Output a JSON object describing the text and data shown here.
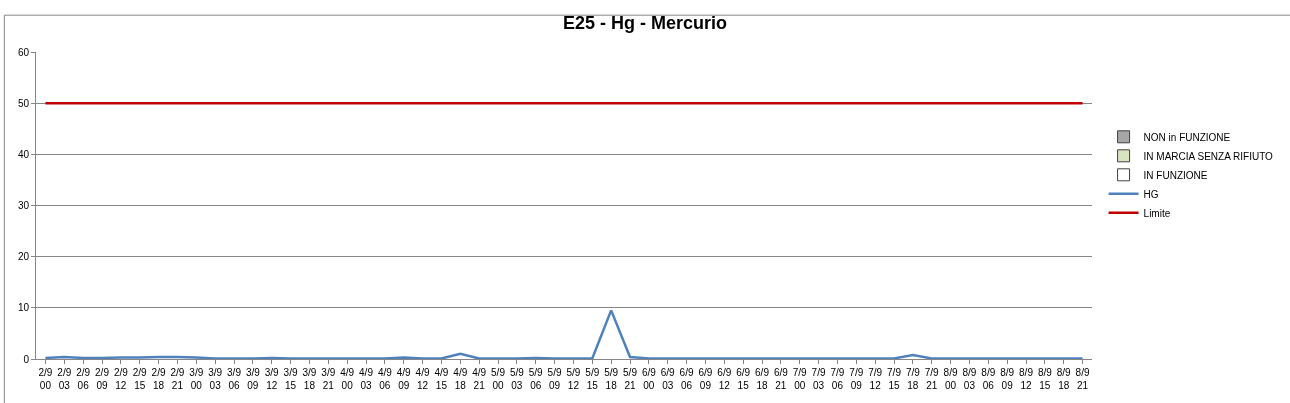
{
  "chart_data": {
    "type": "line",
    "title": "E25 - Hg - Mercurio",
    "categories": [
      "2/9 00",
      "2/9 03",
      "2/9 06",
      "2/9 09",
      "2/9 12",
      "2/9 15",
      "2/9 18",
      "2/9 21",
      "3/9 00",
      "3/9 03",
      "3/9 06",
      "3/9 09",
      "3/9 12",
      "3/9 15",
      "3/9 18",
      "3/9 21",
      "4/9 00",
      "4/9 03",
      "4/9 06",
      "4/9 09",
      "4/9 12",
      "4/9 15",
      "4/9 18",
      "4/9 21",
      "5/9 00",
      "5/9 03",
      "5/9 06",
      "5/9 09",
      "5/9 12",
      "5/9 15",
      "5/9 18",
      "5/9 21",
      "6/9 00",
      "6/9 03",
      "6/9 06",
      "6/9 09",
      "6/9 12",
      "6/9 15",
      "6/9 18",
      "6/9 21",
      "7/9 00",
      "7/9 03",
      "7/9 06",
      "7/9 09",
      "7/9 12",
      "7/9 15",
      "7/9 18",
      "7/9 21",
      "8/9 00",
      "8/9 03",
      "8/9 06",
      "8/9 09",
      "8/9 12",
      "8/9 15",
      "8/9 18",
      "8/9 21"
    ],
    "series": [
      {
        "name": "NON in FUNZIONE",
        "type": "bar",
        "color": "#a6a6a6",
        "values": [
          null,
          null,
          null,
          null,
          null,
          null,
          null,
          null,
          null,
          null,
          null,
          null,
          null,
          null,
          null,
          null,
          null,
          null,
          null,
          null,
          null,
          null,
          null,
          null,
          null,
          null,
          null,
          null,
          null,
          null,
          null,
          null,
          null,
          null,
          null,
          null,
          null,
          null,
          null,
          null,
          null,
          null,
          null,
          null,
          null,
          null,
          null,
          null,
          null,
          null,
          null,
          null,
          null,
          null,
          null,
          null
        ]
      },
      {
        "name": "IN MARCIA SENZA RIFIUTO",
        "type": "bar",
        "color": "#d7e4bd",
        "values": [
          null,
          null,
          null,
          null,
          null,
          null,
          null,
          null,
          null,
          null,
          null,
          null,
          null,
          null,
          null,
          null,
          null,
          null,
          null,
          null,
          null,
          null,
          null,
          null,
          null,
          null,
          null,
          null,
          null,
          null,
          null,
          null,
          null,
          null,
          null,
          null,
          null,
          null,
          null,
          null,
          null,
          null,
          null,
          null,
          null,
          null,
          null,
          null,
          null,
          null,
          null,
          null,
          null,
          null,
          null,
          null
        ]
      },
      {
        "name": "IN FUNZIONE",
        "type": "bar",
        "color": "#ffffff",
        "values": [
          null,
          null,
          null,
          null,
          null,
          null,
          null,
          null,
          null,
          null,
          null,
          null,
          null,
          null,
          null,
          null,
          null,
          null,
          null,
          null,
          null,
          null,
          null,
          null,
          null,
          null,
          null,
          null,
          null,
          null,
          null,
          null,
          null,
          null,
          null,
          null,
          null,
          null,
          null,
          null,
          null,
          null,
          null,
          null,
          null,
          null,
          null,
          null,
          null,
          null,
          null,
          null,
          null,
          null,
          null,
          null
        ]
      },
      {
        "name": "HG",
        "color": "#4f81bd",
        "values": [
          0.2,
          0.4,
          0.2,
          0.2,
          0.3,
          0.3,
          0.4,
          0.4,
          0.3,
          0.1,
          0.1,
          0.1,
          0.2,
          0.1,
          0.1,
          0.1,
          0.1,
          0.1,
          0.1,
          0.3,
          0.1,
          0.1,
          1.0,
          0.1,
          0.1,
          0.1,
          0.2,
          0.1,
          0.1,
          0.1,
          9.5,
          0.4,
          0.1,
          0.1,
          0.1,
          0.1,
          0.1,
          0.1,
          0.1,
          0.1,
          0.1,
          0.1,
          0.1,
          0.1,
          0.1,
          0.1,
          0.8,
          0.1,
          0.1,
          0.1,
          0.1,
          0.1,
          0.1,
          0.1,
          0.1,
          0.1
        ]
      },
      {
        "name": "Limite",
        "color": "#c00000",
        "values": [
          50,
          50,
          50,
          50,
          50,
          50,
          50,
          50,
          50,
          50,
          50,
          50,
          50,
          50,
          50,
          50,
          50,
          50,
          50,
          50,
          50,
          50,
          50,
          50,
          50,
          50,
          50,
          50,
          50,
          50,
          50,
          50,
          50,
          50,
          50,
          50,
          50,
          50,
          50,
          50,
          50,
          50,
          50,
          50,
          50,
          50,
          50,
          50,
          50,
          50,
          50,
          50,
          50,
          50,
          50,
          50
        ]
      }
    ],
    "ylim": [
      0,
      60
    ],
    "yticks": [
      0,
      10,
      20,
      30,
      40,
      50,
      60
    ],
    "grid": "y",
    "legend": "right"
  }
}
